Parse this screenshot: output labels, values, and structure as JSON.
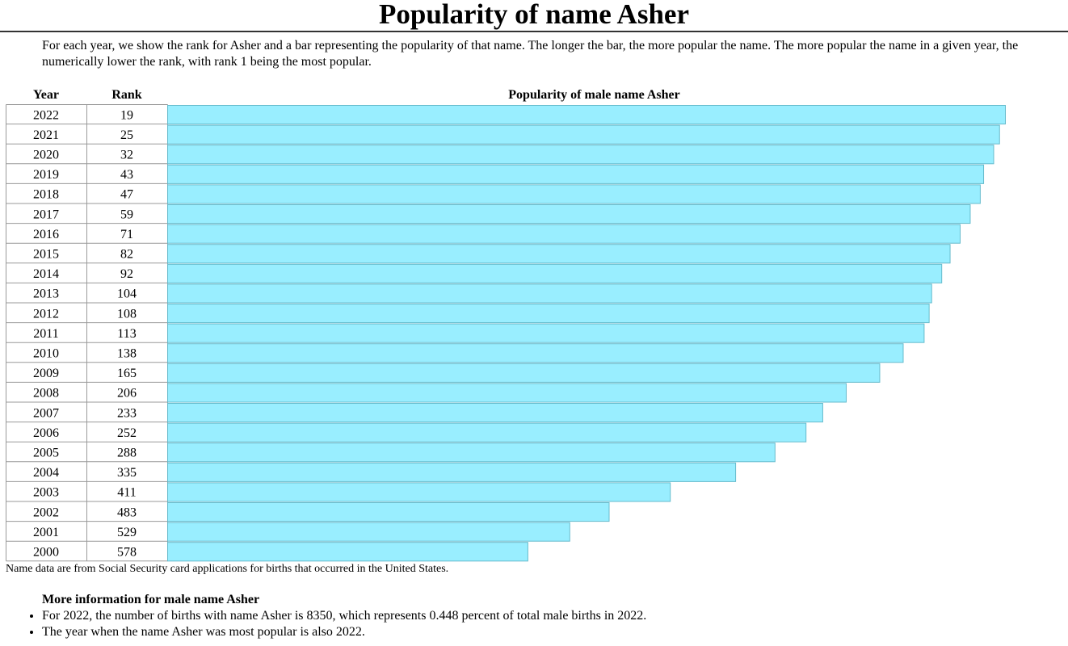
{
  "page": {
    "title": "Popularity of name Asher",
    "intro": "For each year, we show the rank for Asher and a bar representing the popularity of that name. The longer the bar, the more popular the name. The more popular the name in a given year, the numerically lower the rank, with rank 1 being the most popular.",
    "source_note": "Name data are from Social Security card applications for births that occurred in the United States.",
    "more_info_title": "More information for male name Asher",
    "facts": [
      "For 2022, the number of births with name Asher is 8350, which represents 0.448 percent of total male births in 2022.",
      "The year when the name Asher was most popular is also 2022."
    ]
  },
  "colors": {
    "bar_fill": "#99EEFF",
    "bar_stroke": "#66BBCC",
    "grid": "#999999"
  },
  "chart_data": {
    "type": "bar",
    "orientation": "horizontal",
    "columns": [
      "Year",
      "Rank",
      "Popularity of male name Asher"
    ],
    "years": [
      "2022",
      "2021",
      "2020",
      "2019",
      "2018",
      "2017",
      "2016",
      "2015",
      "2014",
      "2013",
      "2012",
      "2011",
      "2010",
      "2009",
      "2008",
      "2007",
      "2006",
      "2005",
      "2004",
      "2003",
      "2002",
      "2001",
      "2000"
    ],
    "ranks": [
      19,
      25,
      32,
      43,
      47,
      59,
      71,
      82,
      92,
      104,
      108,
      113,
      138,
      165,
      206,
      233,
      252,
      288,
      335,
      411,
      483,
      529,
      578
    ],
    "popularity": [
      1.0,
      0.993,
      0.986,
      0.974,
      0.97,
      0.958,
      0.946,
      0.934,
      0.924,
      0.912,
      0.909,
      0.903,
      0.878,
      0.85,
      0.81,
      0.782,
      0.762,
      0.725,
      0.678,
      0.6,
      0.527,
      0.48,
      0.43
    ]
  }
}
